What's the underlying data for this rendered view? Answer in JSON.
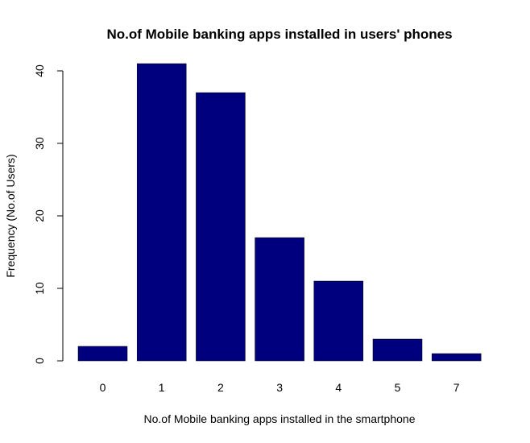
{
  "chart_data": {
    "type": "bar",
    "title": "No.of Mobile banking apps installed in users' phones",
    "xlabel": "No.of Mobile banking apps installed in the smartphone",
    "ylabel": "Frequency (No.of Users)",
    "categories": [
      "0",
      "1",
      "2",
      "3",
      "4",
      "5",
      "7"
    ],
    "values": [
      2,
      41,
      37,
      17,
      11,
      3,
      1
    ],
    "ylim": [
      0,
      41
    ],
    "yticks": [
      0,
      10,
      20,
      30,
      40
    ],
    "grid": false,
    "legend": "none",
    "bar_color": "#00007F"
  }
}
